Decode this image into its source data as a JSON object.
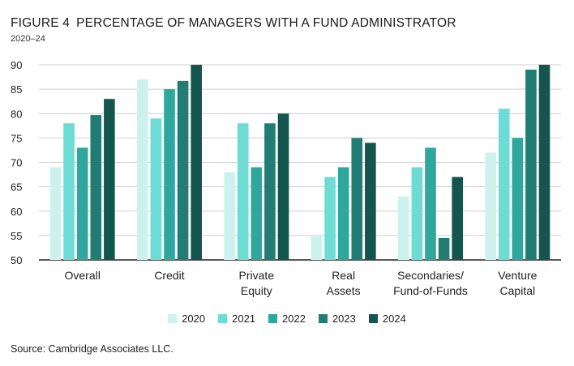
{
  "header": {
    "figure_label": "FIGURE 4",
    "title": "PERCENTAGE OF MANAGERS WITH A FUND ADMINISTRATOR",
    "subtitle": "2020–24"
  },
  "footer": {
    "source": "Source: Cambridge Associates LLC."
  },
  "colors": {
    "2020": "#cdf2ee",
    "2021": "#6ddcd4",
    "2022": "#2fa79d",
    "2023": "#217d73",
    "2024": "#14564f",
    "grid": "#cfcfcf",
    "axis": "#222222"
  },
  "chart_data": {
    "type": "bar",
    "title": "PERCENTAGE OF MANAGERS WITH A FUND ADMINISTRATOR",
    "subtitle": "2020–24",
    "categories": [
      [
        "Overall"
      ],
      [
        "Credit"
      ],
      [
        "Private",
        "Equity"
      ],
      [
        "Real",
        "Assets"
      ],
      [
        "Secondaries/",
        "Fund-of-Funds"
      ],
      [
        "Venture",
        "Capital"
      ]
    ],
    "series": [
      {
        "name": "2020",
        "values": [
          69,
          87,
          68,
          55,
          63,
          72
        ]
      },
      {
        "name": "2021",
        "values": [
          78,
          79,
          78,
          67,
          69,
          81
        ]
      },
      {
        "name": "2022",
        "values": [
          73,
          85,
          69,
          69,
          73,
          75
        ]
      },
      {
        "name": "2023",
        "values": [
          79.7,
          86.7,
          78,
          75,
          54.5,
          89
        ]
      },
      {
        "name": "2024",
        "values": [
          83,
          90,
          80,
          74,
          67,
          90
        ]
      }
    ],
    "ylim": [
      50,
      90
    ],
    "yticks": [
      "50",
      "55",
      "60",
      "65",
      "70",
      "75",
      "80",
      "85",
      "90"
    ],
    "grid": true,
    "legend_position": "bottom-center",
    "xlabel": "",
    "ylabel": ""
  }
}
